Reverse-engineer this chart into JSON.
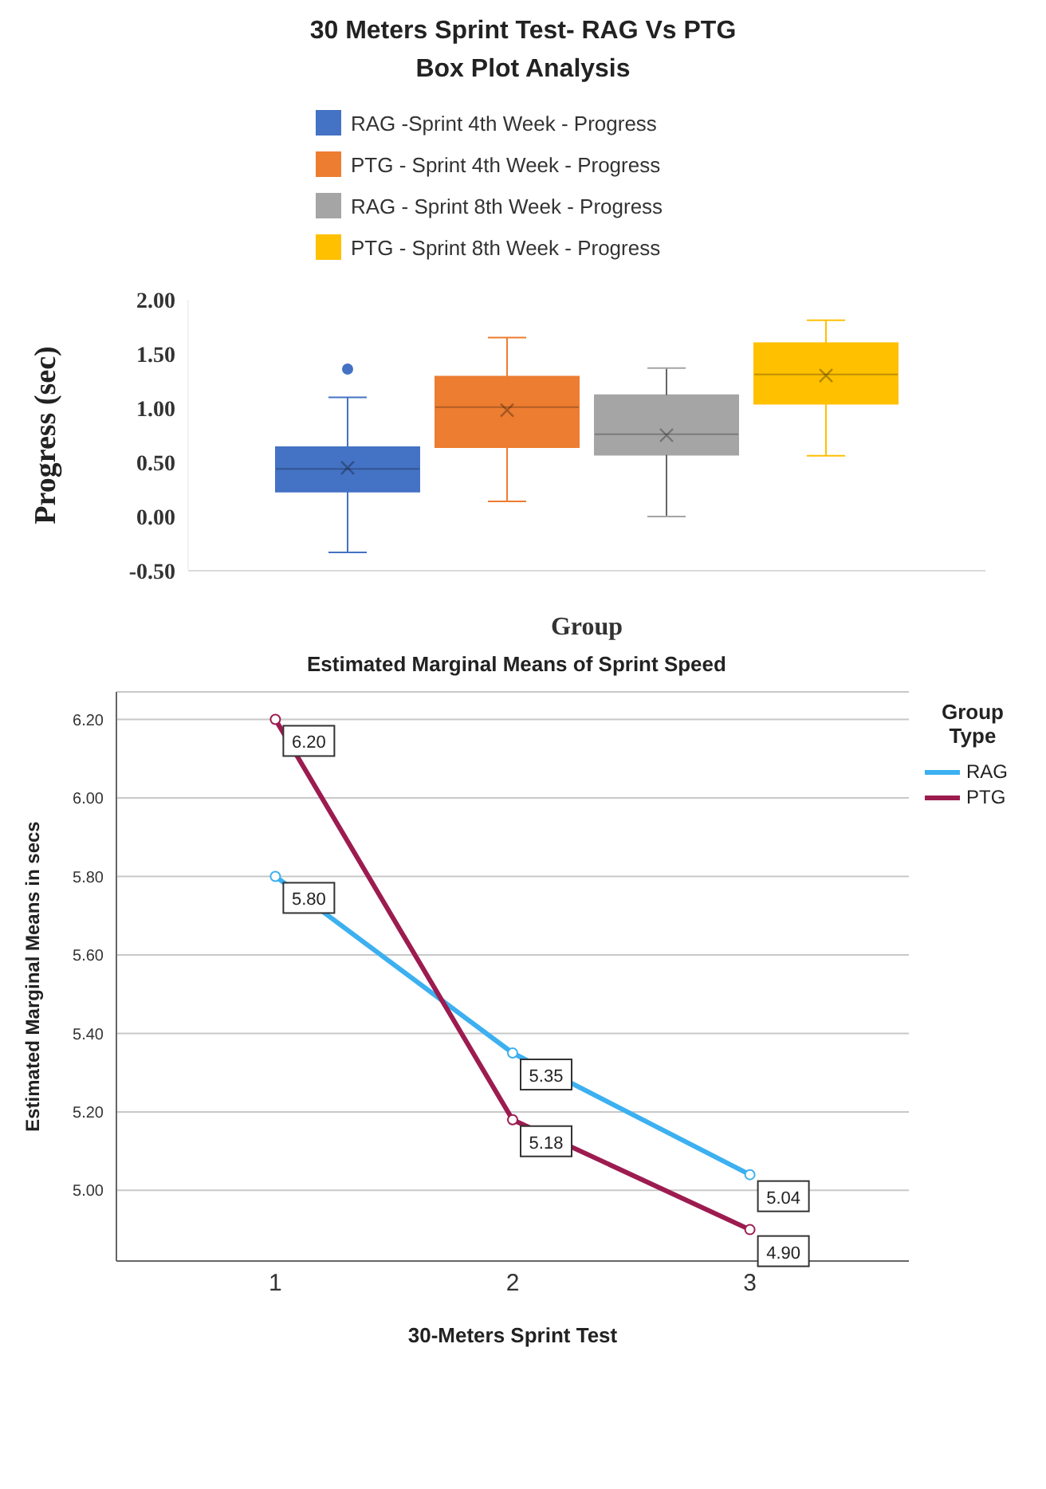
{
  "chart_data": [
    {
      "type": "box",
      "title": "30 Meters Sprint Test- RAG Vs PTG\nBox Plot Analysis",
      "xlabel": "Group",
      "ylabel": "Progress (sec)",
      "categories": [
        null
      ],
      "legend": "top",
      "series": [
        {
          "name": "RAG -Sprint 4th Week - Progress",
          "color": "#4472c4",
          "boxes": [
            {
              "low": -0.33,
              "q1": 0.23,
              "median": 0.44,
              "q3": 0.64,
              "high": 1.1,
              "mean": 0.45,
              "outliers": [
                1.36
              ]
            }
          ]
        },
        {
          "name": "PTG - Sprint 4th Week - Progress",
          "color": "#ed7d31",
          "boxes": [
            {
              "low": 0.14,
              "q1": 0.64,
              "median": 1.01,
              "q3": 1.29,
              "high": 1.65,
              "mean": 0.98
            }
          ]
        },
        {
          "name": "RAG - Sprint 8th Week - Progress",
          "color": "#a5a5a5",
          "boxes": [
            {
              "low": 0.0,
              "q1": 0.57,
              "median": 0.76,
              "q3": 1.12,
              "high": 1.37,
              "mean": 0.75
            }
          ]
        },
        {
          "name": "PTG - Sprint 8th Week - Progress",
          "color": "#ffc000",
          "boxes": [
            {
              "low": 0.56,
              "q1": 1.04,
              "median": 1.31,
              "q3": 1.6,
              "high": 1.81,
              "mean": 1.3
            }
          ]
        }
      ],
      "ylim": [
        -0.5,
        2.0
      ],
      "yticks": [
        {
          "value": -0.5,
          "label": "-0.50"
        },
        {
          "value": 0,
          "label": "0.00"
        },
        {
          "value": 0.5,
          "label": "0.50"
        },
        {
          "value": 1,
          "label": "1.00"
        },
        {
          "value": 1.5,
          "label": "1.50"
        },
        {
          "value": 2,
          "label": "2.00"
        }
      ],
      "grid": false
    },
    {
      "type": "line",
      "title": "Estimated Marginal Means of Sprint Speed",
      "xlabel": "30-Meters Sprint Test",
      "ylabel": "Estimated Marginal Means in secs",
      "legend_title": "Group Type",
      "legend": "top right",
      "marker": "circle",
      "grid": "y",
      "categories": [
        "1",
        "2",
        "3"
      ],
      "series": [
        {
          "name": "RAG",
          "color": "#3cb0f0",
          "values": [
            5.8,
            5.35,
            5.04
          ],
          "value_labels": [
            "5.80",
            "5.35",
            "5.04"
          ]
        },
        {
          "name": "PTG",
          "color": "#9c1c50",
          "values": [
            6.2,
            5.18,
            4.9
          ],
          "value_labels": [
            "6.20",
            "5.18",
            "4.90"
          ]
        }
      ],
      "ylim": [
        4.82,
        6.27
      ],
      "yticks": [
        {
          "value": 5,
          "label": "5.00"
        },
        {
          "value": 5.2,
          "label": "5.20"
        },
        {
          "value": 5.4,
          "label": "5.40"
        },
        {
          "value": 5.6,
          "label": "5.60"
        },
        {
          "value": 5.8,
          "label": "5.80"
        },
        {
          "value": 6,
          "label": "6.00"
        },
        {
          "value": 6.2,
          "label": "6.20"
        }
      ]
    }
  ]
}
